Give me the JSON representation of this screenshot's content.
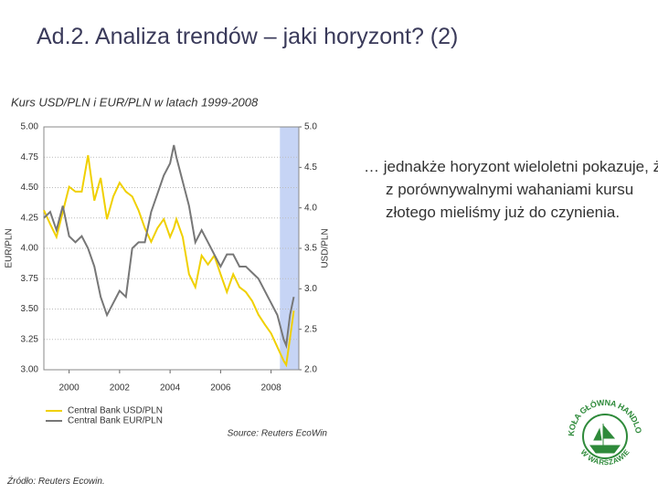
{
  "title": "Ad.2. Analiza trendów – jaki horyzont? (2)",
  "chart_data": {
    "type": "line",
    "title": "Kurs USD/PLN i EUR/PLN w latach 1999-2008",
    "ylabel": "EUR/PLN",
    "y2label": "USD/PLN",
    "source": "Source: Reuters EcoWin",
    "xlim": [
      1999,
      2009.1
    ],
    "xticks": [
      2000,
      2002,
      2004,
      2006,
      2008
    ],
    "ylim": [
      3,
      5
    ],
    "yticks": [
      {
        "value": 3,
        "label": "3.00"
      },
      {
        "value": 3.25,
        "label": "3.25"
      },
      {
        "value": 3.5,
        "label": "3.50"
      },
      {
        "value": 3.75,
        "label": "3.75"
      },
      {
        "value": 4,
        "label": "4.00"
      },
      {
        "value": 4.25,
        "label": "4.25"
      },
      {
        "value": 4.5,
        "label": "4.50"
      },
      {
        "value": 4.75,
        "label": "4.75"
      },
      {
        "value": 5,
        "label": "5.00"
      }
    ],
    "y2lim": [
      2,
      5
    ],
    "y2ticks": [
      {
        "value": 2,
        "label": "2.0"
      },
      2.5,
      {
        "value": 3,
        "label": "3.0"
      },
      3.5,
      {
        "value": 4,
        "label": "4.0"
      },
      4.5,
      {
        "value": 5,
        "label": "5.0"
      }
    ],
    "grid": true,
    "highlight_x": [
      2008.35,
      2009.1
    ],
    "highlight_color": "#c6d4f5",
    "x": [
      1999.0,
      1999.25,
      1999.5,
      1999.75,
      2000.0,
      2000.25,
      2000.5,
      2000.75,
      2001.0,
      2001.25,
      2001.5,
      2001.75,
      2002.0,
      2002.25,
      2002.5,
      2002.75,
      2003.0,
      2003.25,
      2003.5,
      2003.75,
      2004.0,
      2004.15,
      2004.25,
      2004.5,
      2004.75,
      2005.0,
      2005.25,
      2005.5,
      2005.75,
      2006.0,
      2006.25,
      2006.5,
      2006.75,
      2007.0,
      2007.25,
      2007.5,
      2007.75,
      2008.0,
      2008.25,
      2008.5,
      2008.6,
      2008.75,
      2008.9
    ],
    "series": [
      {
        "name": "Central Bank USD/PLN",
        "color": "#f0d000",
        "axis": "y2",
        "values": [
          3.97,
          3.8,
          3.64,
          3.95,
          4.26,
          4.2,
          4.2,
          4.65,
          4.09,
          4.37,
          3.86,
          4.14,
          4.31,
          4.2,
          4.14,
          3.97,
          3.75,
          3.58,
          3.75,
          3.86,
          3.64,
          3.75,
          3.86,
          3.64,
          3.18,
          3.02,
          3.41,
          3.3,
          3.41,
          3.18,
          2.96,
          3.18,
          3.02,
          2.96,
          2.85,
          2.68,
          2.56,
          2.45,
          2.28,
          2.11,
          2.06,
          2.39,
          2.73
        ]
      },
      {
        "name": "Central Bank EUR/PLN",
        "color": "#777777",
        "values": [
          4.25,
          4.3,
          4.15,
          4.35,
          4.1,
          4.05,
          4.1,
          4.0,
          3.85,
          3.6,
          3.45,
          3.55,
          3.65,
          3.6,
          4.0,
          4.05,
          4.05,
          4.3,
          4.45,
          4.6,
          4.7,
          4.85,
          4.75,
          4.55,
          4.35,
          4.05,
          4.15,
          4.05,
          3.95,
          3.85,
          3.95,
          3.95,
          3.85,
          3.85,
          3.8,
          3.75,
          3.65,
          3.55,
          3.45,
          3.25,
          3.2,
          3.45,
          3.6
        ]
      }
    ]
  },
  "body_text": "… jednakże horyzont wieloletni pokazuje, że z porównywalnymi wahaniami kursu złotego mieliśmy już do czynienia.",
  "footnote": "Źródło: Reuters Ecowin.",
  "logo": {
    "top": "SZKOŁA GŁÓWNA HANDLOWA",
    "bottom": "W WARSZAWIE"
  }
}
